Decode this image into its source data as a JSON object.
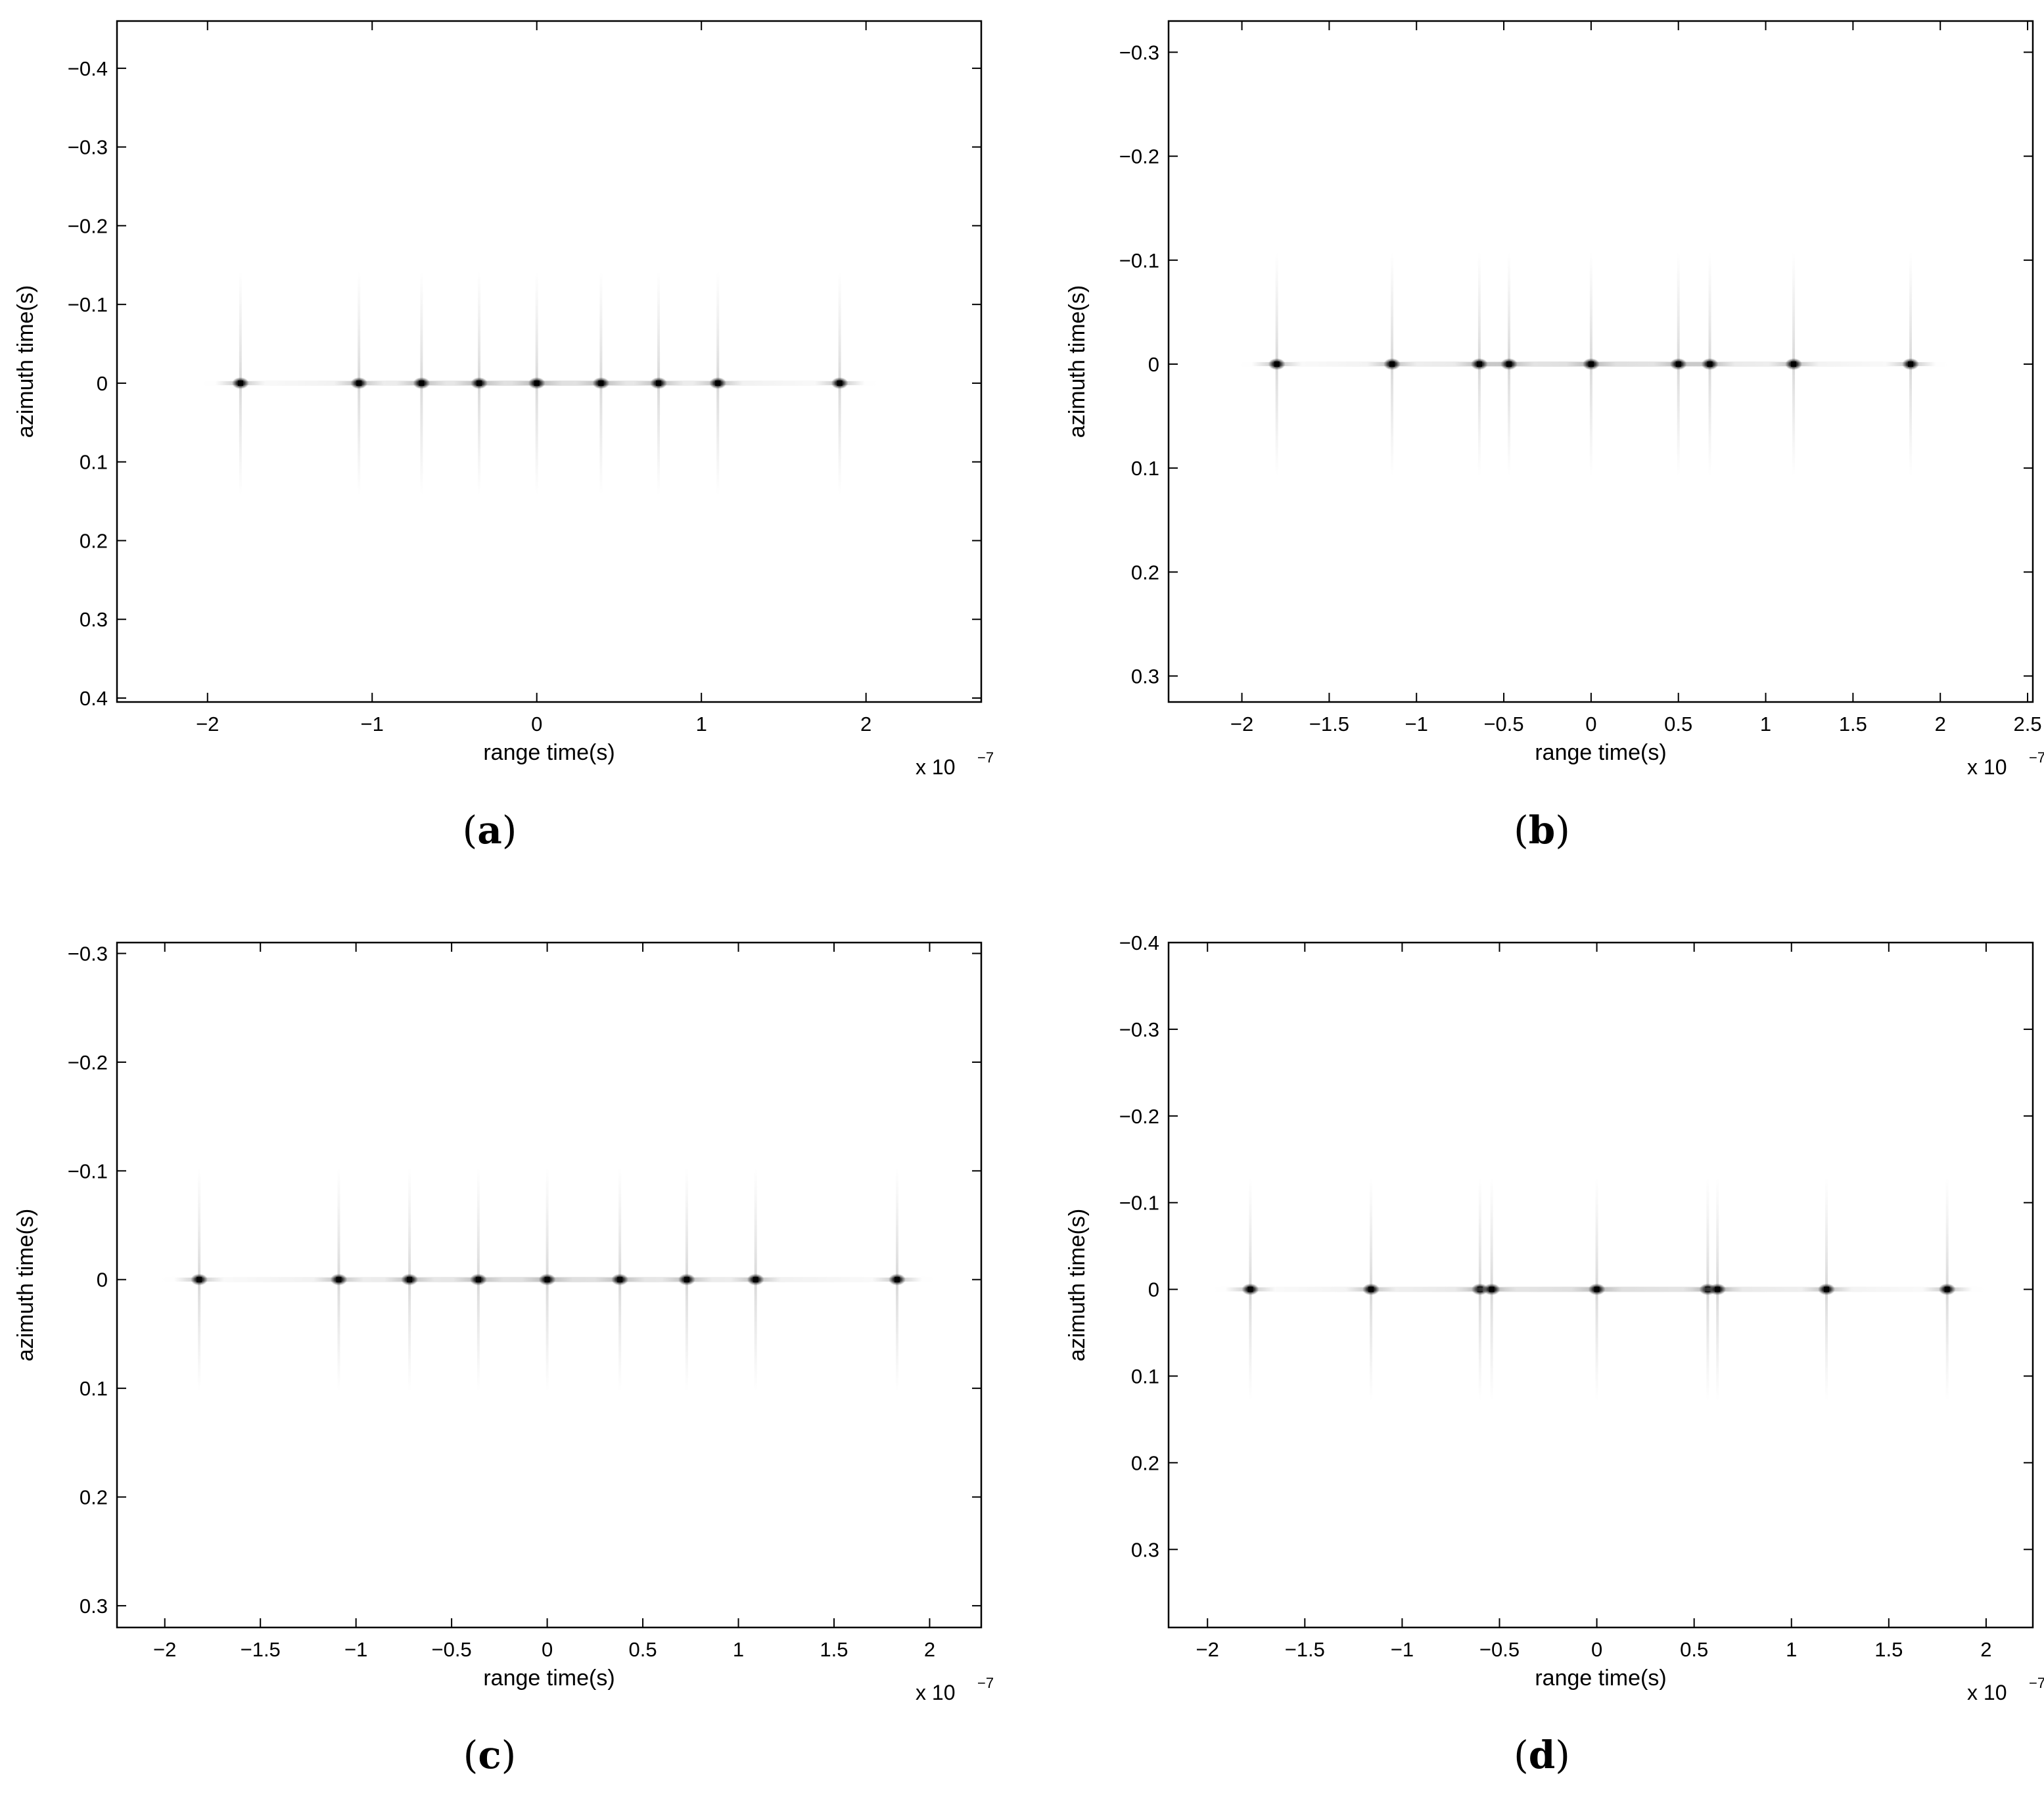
{
  "chart_data": [
    {
      "type": "scatter",
      "caption": "a",
      "xlabel": "range time(s)",
      "ylabel": "azimuth time(s)",
      "x_multiplier_text": "x 10",
      "x_multiplier_exp": "−7",
      "xlim": [
        -2.55,
        2.7
      ],
      "ylim": [
        -0.46,
        0.405
      ],
      "y_reversed": true,
      "grid": false,
      "xticks": [
        -2,
        -1,
        0,
        1,
        2
      ],
      "xtick_labels": [
        "−2",
        "−1",
        "0",
        "1",
        "2"
      ],
      "yticks": [
        -0.4,
        -0.3,
        -0.2,
        -0.1,
        0,
        0.1,
        0.2,
        0.3,
        0.4
      ],
      "ytick_labels": [
        "−0.4",
        "−0.3",
        "−0.2",
        "−0.1",
        "0",
        "0.1",
        "0.2",
        "0.3",
        "0.4"
      ],
      "x": [
        -1.8,
        -1.08,
        -0.7,
        -0.35,
        0,
        0.39,
        0.74,
        1.1,
        1.84
      ],
      "y": [
        0,
        0,
        0,
        0,
        0,
        0,
        0,
        0,
        0
      ]
    },
    {
      "type": "scatter",
      "caption": "b",
      "xlabel": "range time(s)",
      "ylabel": "azimuth time(s)",
      "x_multiplier_text": "x 10",
      "x_multiplier_exp": "−7",
      "xlim": [
        -2.42,
        2.53
      ],
      "ylim": [
        -0.33,
        0.325
      ],
      "y_reversed": true,
      "grid": false,
      "xticks": [
        -2,
        -1.5,
        -1,
        -0.5,
        0,
        0.5,
        1,
        1.5,
        2,
        2.5
      ],
      "xtick_labels": [
        "−2",
        "−1.5",
        "−1",
        "−0.5",
        "0",
        "0.5",
        "1",
        "1.5",
        "2",
        "2.5"
      ],
      "yticks": [
        -0.3,
        -0.2,
        -0.1,
        0,
        0.1,
        0.2,
        0.3
      ],
      "ytick_labels": [
        "−0.3",
        "−0.2",
        "−0.1",
        "0",
        "0.1",
        "0.2",
        "0.3"
      ],
      "x": [
        -1.8,
        -1.14,
        -0.64,
        -0.47,
        0,
        0.5,
        0.68,
        1.16,
        1.83
      ],
      "y": [
        0,
        0,
        0,
        0,
        0,
        0,
        0,
        0,
        0
      ]
    },
    {
      "type": "scatter",
      "caption": "c",
      "xlabel": "range time(s)",
      "ylabel": "azimuth time(s)",
      "x_multiplier_text": "x 10",
      "x_multiplier_exp": "−7",
      "xlim": [
        -2.25,
        2.27
      ],
      "ylim": [
        -0.31,
        0.32
      ],
      "y_reversed": true,
      "grid": false,
      "xticks": [
        -2,
        -1.5,
        -1,
        -0.5,
        0,
        0.5,
        1,
        1.5,
        2
      ],
      "xtick_labels": [
        "−2",
        "−1.5",
        "−1",
        "−0.5",
        "0",
        "0.5",
        "1",
        "1.5",
        "2"
      ],
      "yticks": [
        -0.3,
        -0.2,
        -0.1,
        0,
        0.1,
        0.2,
        0.3
      ],
      "ytick_labels": [
        "−0.3",
        "−0.2",
        "−0.1",
        "0",
        "0.1",
        "0.2",
        "0.3"
      ],
      "x": [
        -1.82,
        -1.09,
        -0.72,
        -0.36,
        0,
        0.38,
        0.73,
        1.09,
        1.83
      ],
      "y": [
        0,
        0,
        0,
        0,
        0,
        0,
        0,
        0,
        0
      ]
    },
    {
      "type": "scatter",
      "caption": "d",
      "xlabel": "range time(s)",
      "ylabel": "azimuth time(s)",
      "x_multiplier_text": "x 10",
      "x_multiplier_exp": "−7",
      "xlim": [
        -2.2,
        2.24
      ],
      "ylim": [
        -0.4,
        0.39
      ],
      "y_reversed": true,
      "grid": false,
      "xticks": [
        -2,
        -1.5,
        -1,
        -0.5,
        0,
        0.5,
        1,
        1.5,
        2
      ],
      "xtick_labels": [
        "−2",
        "−1.5",
        "−1",
        "−0.5",
        "0",
        "0.5",
        "1",
        "1.5",
        "2"
      ],
      "yticks": [
        -0.4,
        -0.3,
        -0.2,
        -0.1,
        0,
        0.1,
        0.2,
        0.3
      ],
      "ytick_labels": [
        "−0.4",
        "−0.3",
        "−0.2",
        "−0.1",
        "0",
        "0.1",
        "0.2",
        "0.3"
      ],
      "x": [
        -1.78,
        -1.16,
        -0.6,
        -0.54,
        0,
        0.57,
        0.62,
        1.18,
        1.8
      ],
      "y": [
        0,
        0,
        0,
        0,
        0,
        0,
        0,
        0,
        0
      ]
    }
  ]
}
